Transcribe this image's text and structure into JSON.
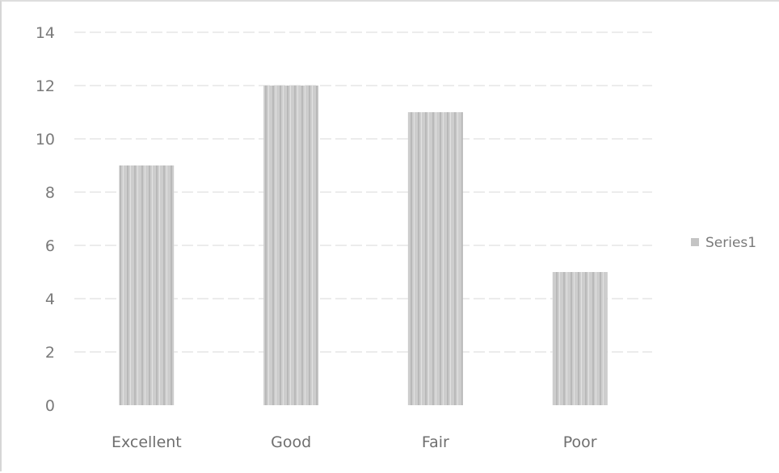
{
  "chart_data": {
    "type": "bar",
    "categories": [
      "Excellent",
      "Good",
      "Fair",
      "Poor"
    ],
    "series": [
      {
        "name": "Series1",
        "values": [
          9,
          12,
          11,
          5
        ]
      }
    ],
    "ylim": [
      0,
      14
    ],
    "yticks": [
      0,
      2,
      4,
      6,
      8,
      10,
      12,
      14
    ],
    "grid": true,
    "legend": "right",
    "bar_color": "#c4c4c4",
    "grid_color": "#d9d9d9"
  }
}
